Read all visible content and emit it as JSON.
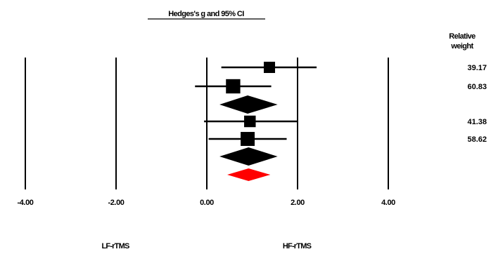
{
  "chart_data": {
    "type": "forest",
    "title": "Hedges's g and 95% CI",
    "weight_header": [
      "Relative",
      "weight"
    ],
    "xlim": [
      -4,
      4
    ],
    "x_ticks": [
      {
        "value": -4,
        "label": "-4.00"
      },
      {
        "value": -2,
        "label": "-2.00"
      },
      {
        "value": 0,
        "label": "0.00"
      },
      {
        "value": 2,
        "label": "2.00"
      },
      {
        "value": 4,
        "label": "4.00"
      }
    ],
    "favours": {
      "left": "LF-rTMS",
      "right": "HF-rTMS"
    },
    "rows": [
      {
        "kind": "study",
        "g": 1.38,
        "ci": [
          0.32,
          2.42
        ],
        "weight": "39.17"
      },
      {
        "kind": "study",
        "g": 0.58,
        "ci": [
          -0.26,
          1.42
        ],
        "weight": "60.83"
      },
      {
        "kind": "pooled",
        "g": 0.9,
        "ci": [
          0.28,
          1.56
        ],
        "color": "#000000"
      },
      {
        "kind": "study",
        "g": 0.95,
        "ci": [
          -0.06,
          2.0
        ],
        "weight": "41.38"
      },
      {
        "kind": "study",
        "g": 0.9,
        "ci": [
          0.04,
          1.76
        ],
        "weight": "58.62"
      },
      {
        "kind": "pooled",
        "g": 0.92,
        "ci": [
          0.28,
          1.56
        ],
        "color": "#000000"
      },
      {
        "kind": "overall",
        "g": 0.92,
        "ci": [
          0.45,
          1.4
        ],
        "color": "#ff0000"
      }
    ]
  }
}
